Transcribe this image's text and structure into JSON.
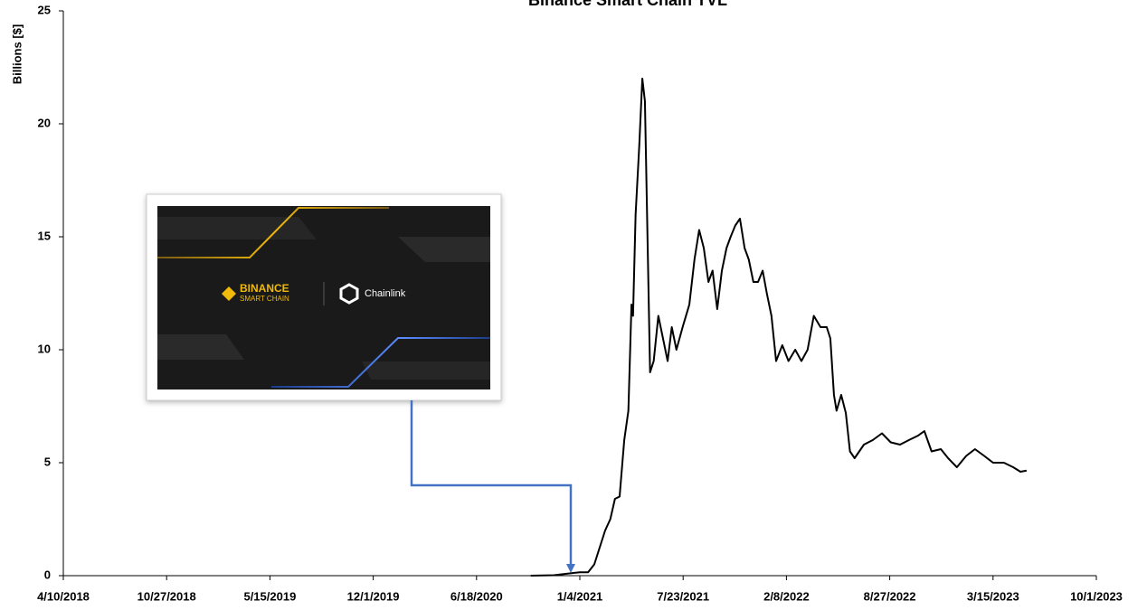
{
  "chart_data": {
    "type": "line",
    "title": "Binance Smart Chain TVL",
    "y_label": "Billions [$]",
    "x": [
      "10/1/2020",
      "11/15/2020",
      "12/15/2020",
      "1/4/2021",
      "1/20/2021",
      "2/1/2021",
      "2/22/2021",
      "3/4/2021",
      "3/13/2021",
      "3/22/2021",
      "3/31/2021",
      "4/8/2021",
      "4/14/2021",
      "4/17/2021",
      "4/22/2021",
      "4/29/2021",
      "5/5/2021",
      "5/10/2021",
      "5/15/2021",
      "5/20/2021",
      "5/27/2021",
      "6/5/2021",
      "6/14/2021",
      "6/23/2021",
      "7/1/2021",
      "7/10/2021",
      "7/22/2021",
      "8/4/2021",
      "8/14/2021",
      "8/23/2021",
      "9/1/2021",
      "9/10/2021",
      "9/18/2021",
      "9/27/2021",
      "10/6/2021",
      "10/15/2021",
      "10/23/2021",
      "11/1/2021",
      "11/10/2021",
      "11/19/2021",
      "11/27/2021",
      "12/6/2021",
      "12/15/2021",
      "12/24/2021",
      "1/1/2022",
      "1/10/2022",
      "1/19/2022",
      "1/31/2022",
      "2/12/2022",
      "2/25/2022",
      "3/9/2022",
      "3/21/2022",
      "4/2/2022",
      "4/15/2022",
      "4/27/2022",
      "5/4/2022",
      "5/11/2022",
      "5/16/2022",
      "5/25/2022",
      "6/3/2022",
      "6/11/2022",
      "6/20/2022",
      "7/8/2022",
      "7/25/2022",
      "8/12/2022",
      "8/29/2022",
      "9/16/2022",
      "10/3/2022",
      "10/21/2022",
      "11/2/2022",
      "11/16/2022",
      "12/4/2022",
      "12/18/2022",
      "1/4/2023",
      "1/22/2023",
      "2/8/2023",
      "2/26/2023",
      "3/15/2023",
      "4/5/2023",
      "4/23/2023",
      "5/7/2023",
      "5/19/2023"
    ],
    "values": [
      0,
      0.02,
      0.1,
      0.15,
      0.15,
      0.5,
      2,
      2.5,
      3.4,
      3.5,
      6,
      7.3,
      12,
      11.5,
      16,
      19,
      22,
      21,
      15,
      9,
      9.5,
      11.5,
      10.5,
      9.5,
      11,
      10,
      11,
      12,
      14,
      15.3,
      14.5,
      13,
      13.5,
      11.8,
      13.5,
      14.5,
      15,
      15.5,
      15.8,
      14.5,
      14,
      13,
      13,
      13.5,
      12.5,
      11.5,
      9.5,
      10.2,
      9.5,
      10,
      9.5,
      10,
      11.5,
      11,
      11,
      10.5,
      8,
      7.3,
      8,
      7.2,
      5.5,
      5.2,
      5.8,
      6,
      6.3,
      5.9,
      5.8,
      6,
      6.2,
      6.4,
      5.5,
      5.6,
      5.2,
      4.8,
      5.3,
      5.6,
      5.3,
      5,
      5,
      4.8,
      4.6,
      4.65
    ],
    "color": "#000000",
    "xlim": [
      "4/10/2018",
      "10/1/2023"
    ],
    "xticks": [
      "4/10/2018",
      "10/27/2018",
      "5/15/2019",
      "12/1/2019",
      "6/18/2020",
      "1/4/2021",
      "7/23/2021",
      "2/8/2022",
      "8/27/2022",
      "3/15/2023",
      "10/1/2023"
    ],
    "ylim": [
      0,
      25
    ],
    "yticks": [
      0,
      5,
      10,
      15,
      20,
      25
    ],
    "grid": false,
    "inset": {
      "brand": "BINANCE",
      "brand_sub": "SMART CHAIN",
      "partner": "Chainlink"
    }
  }
}
